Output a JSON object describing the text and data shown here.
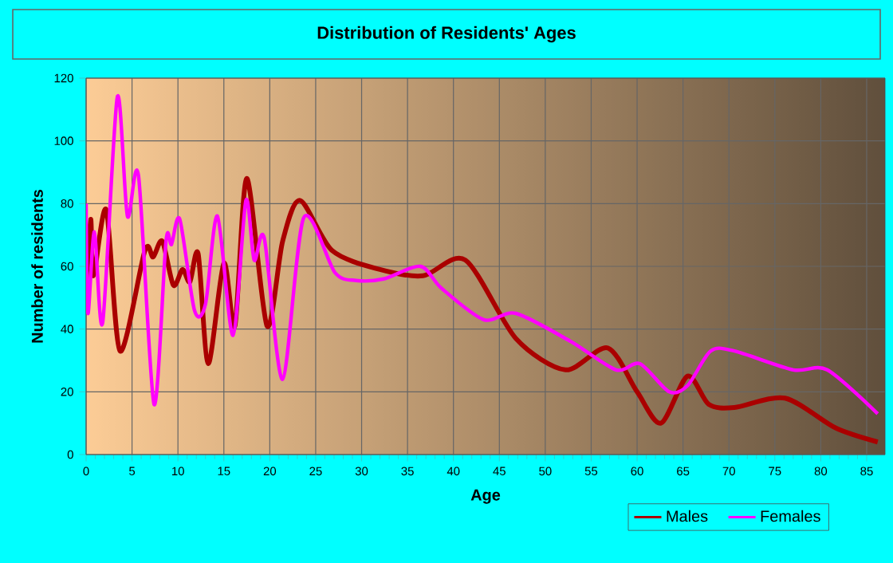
{
  "chart_data": {
    "type": "line",
    "title": "Distribution of Residents' Ages",
    "xlabel": "Age",
    "ylabel": "Number of residents",
    "xlim": [
      0,
      87
    ],
    "ylim": [
      0,
      120
    ],
    "xticks": [
      0,
      5,
      10,
      15,
      20,
      25,
      30,
      35,
      40,
      45,
      50,
      55,
      60,
      65,
      70,
      75,
      80,
      85
    ],
    "yticks": [
      0,
      20,
      40,
      60,
      80,
      100,
      120
    ],
    "grid": true,
    "legend": "bottom right",
    "marker": "none",
    "line_style": "solid",
    "series": [
      {
        "name": "Males",
        "color": "#aa0000",
        "x": [
          0,
          0.5,
          0.8,
          2.2,
          3.7,
          6.4,
          7.3,
          8.3,
          9.5,
          10.5,
          11.3,
          12.2,
          13.3,
          15,
          16.2,
          17.5,
          19.7,
          21.4,
          23.3,
          26.8,
          32,
          36.7,
          41.3,
          46.8,
          52.2,
          56.8,
          60,
          62.6,
          65.5,
          67.8,
          70.6,
          76.1,
          81.6,
          86.2
        ],
        "values": [
          54,
          75,
          57,
          78,
          33,
          65,
          63,
          68,
          54,
          59,
          55,
          64,
          29,
          61,
          41,
          88,
          41,
          68,
          81,
          65,
          59,
          57,
          62,
          37,
          27,
          34,
          20,
          10,
          25,
          16,
          15,
          18,
          8.5,
          4
        ]
      },
      {
        "name": "Females",
        "color": "#ff00ff",
        "x": [
          0,
          0.2,
          0.9,
          1.8,
          3.4,
          4.5,
          5.7,
          7.4,
          8.7,
          9.3,
          10.2,
          11.8,
          13,
          14.3,
          16,
          17.4,
          18.3,
          19.4,
          21.4,
          23.7,
          27.1,
          29.4,
          32.4,
          36.4,
          38.7,
          43.3,
          46.8,
          52.8,
          57.7,
          60.3,
          63.5,
          65.5,
          68,
          70.6,
          77,
          80.7,
          86.2
        ],
        "values": [
          80,
          45,
          71,
          42,
          114,
          76,
          89,
          16,
          68,
          67,
          75,
          46,
          48,
          76,
          38,
          81,
          62,
          69,
          24,
          75.5,
          58,
          55.5,
          56,
          60,
          53,
          43,
          45,
          36,
          27,
          29,
          20,
          22,
          33,
          33,
          27,
          27,
          13
        ]
      }
    ]
  }
}
